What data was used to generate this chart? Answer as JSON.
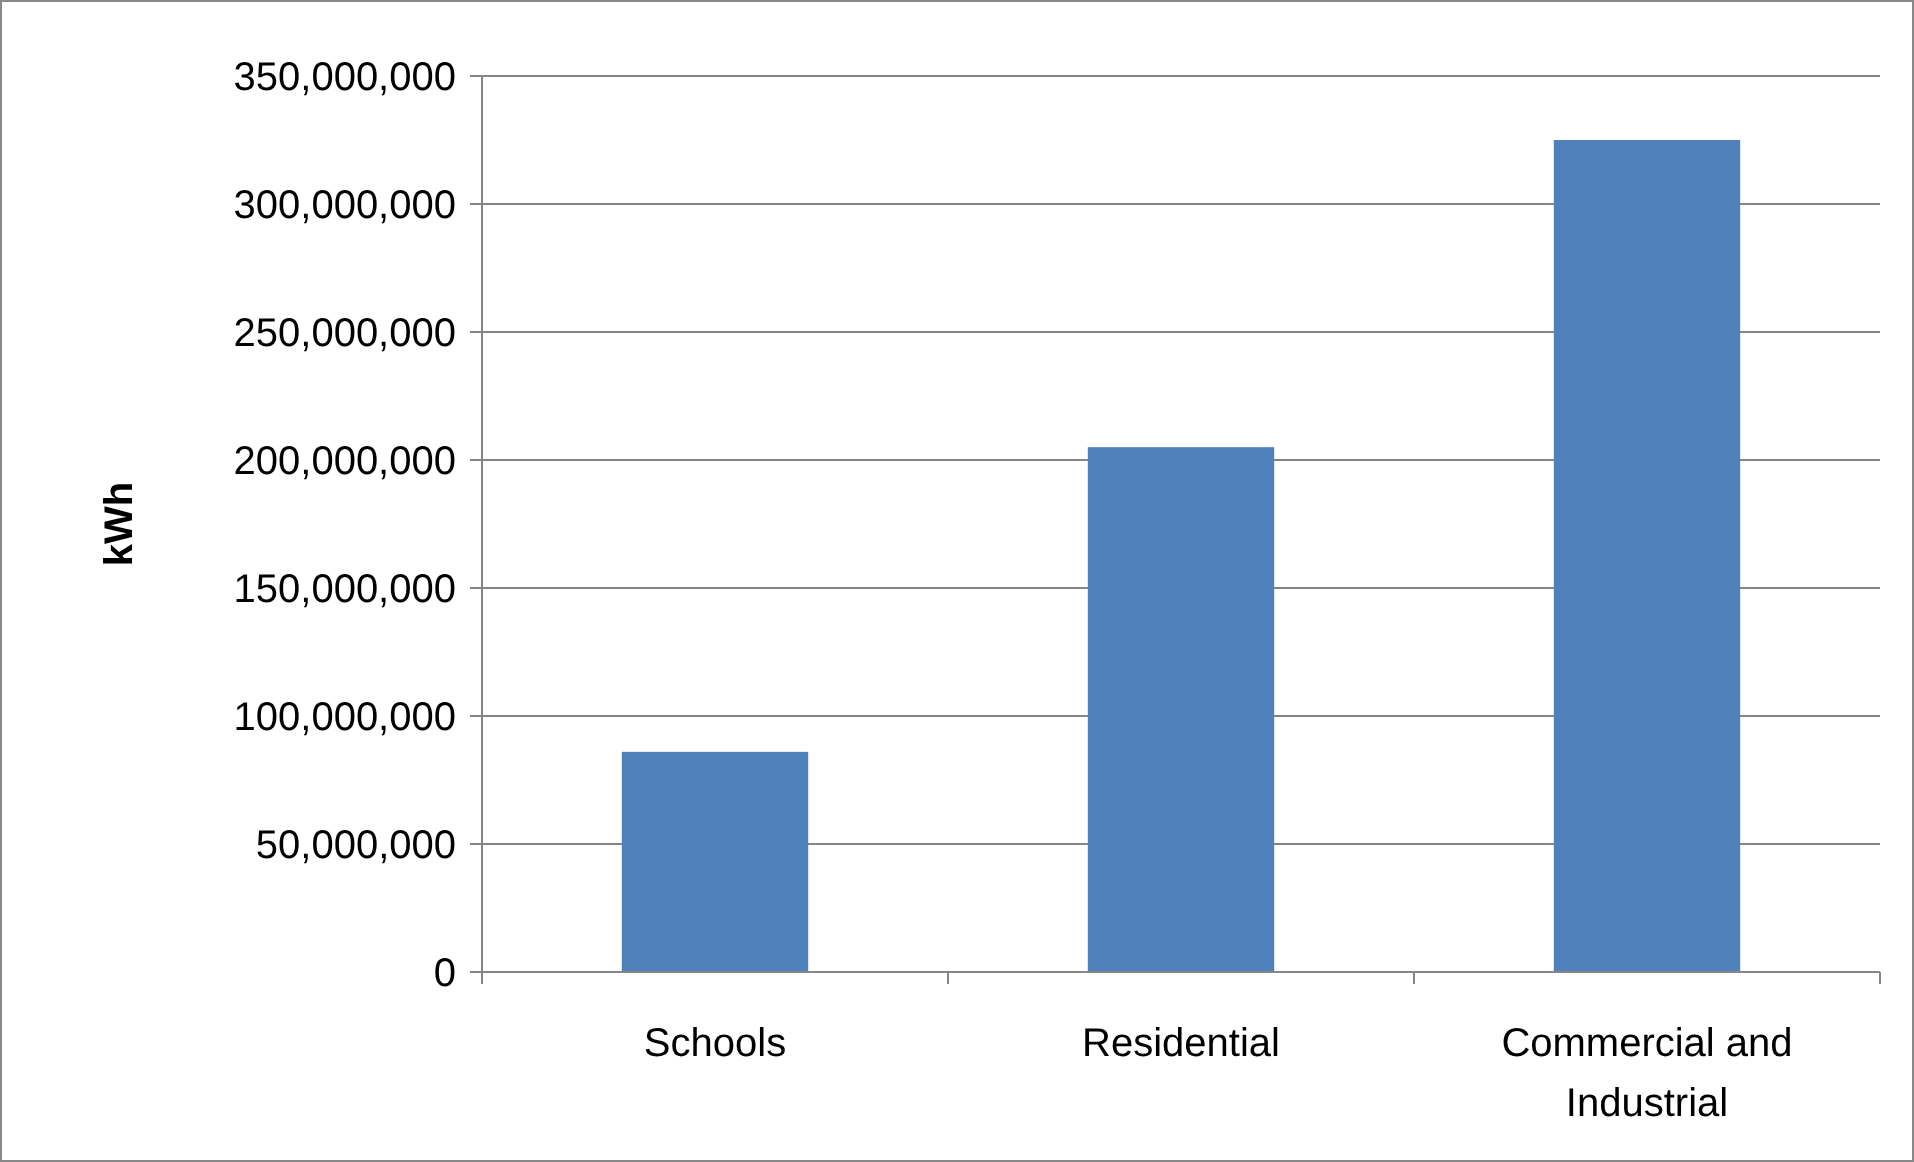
{
  "chart_data": {
    "type": "bar",
    "ylabel": "kWh",
    "categories": [
      "Schools",
      "Residential",
      "Commercial and Industrial"
    ],
    "values": [
      86000000,
      205000000,
      325000000
    ],
    "color": "#4f81bd",
    "ylim": [
      0,
      350000000
    ],
    "yticks": [
      {
        "value": 0,
        "label": "0"
      },
      {
        "value": 50000000,
        "label": "50,000,000"
      },
      {
        "value": 100000000,
        "label": "100,000,000"
      },
      {
        "value": 150000000,
        "label": "150,000,000"
      },
      {
        "value": 200000000,
        "label": "200,000,000"
      },
      {
        "value": 250000000,
        "label": "250,000,000"
      },
      {
        "value": 300000000,
        "label": "300,000,000"
      },
      {
        "value": 350000000,
        "label": "350,000,000"
      }
    ],
    "grid": "y"
  }
}
